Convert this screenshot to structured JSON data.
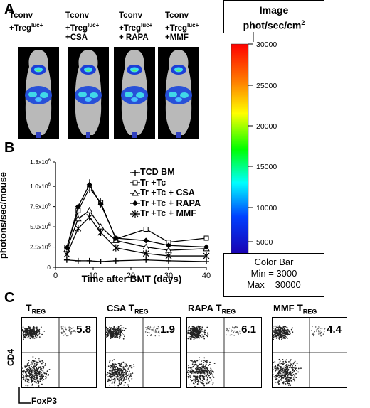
{
  "panel_a": {
    "letter": "A",
    "images": [
      {
        "line1": "Tconv",
        "line2": "+Treg",
        "sup": "luc+",
        "line3": ""
      },
      {
        "line1": "Tconv",
        "line2": "+Treg",
        "sup": "luc+",
        "line3": "+CSA"
      },
      {
        "line1": "Tconv",
        "line2": "+Treg",
        "sup": "luc+",
        "line3": "+ RAPA"
      },
      {
        "line1": "Tconv",
        "line2": "+Treg",
        "sup": "luc+",
        "line3": "+MMF"
      }
    ]
  },
  "color_scale": {
    "header": "Image\nphot/sec/cm",
    "header_sup": "2",
    "ticks": [
      "30000",
      "25000",
      "20000",
      "15000",
      "10000",
      "5000"
    ],
    "footer_title": "Color Bar",
    "footer_min": "Min = 3000",
    "footer_max": "Max = 30000"
  },
  "panel_b": {
    "letter": "B",
    "ylabel": "photons/sec/mouse",
    "xlabel": "Time after BMT (days)",
    "ytick_labels": [
      "0",
      "2.5x10",
      "5.0x10",
      "7.5x10",
      "1.0x10",
      "1.3x10"
    ],
    "ytick_exp": "6",
    "xtick_labels": [
      "0",
      "10",
      "20",
      "30",
      "40"
    ]
  },
  "chart_data": {
    "type": "line",
    "xlabel": "Time after BMT (days)",
    "ylabel": "photons/sec/mouse",
    "xlim": [
      0,
      40
    ],
    "ylim": [
      0,
      1300000
    ],
    "series": [
      {
        "name": "TCD BM",
        "marker": "cross",
        "x": [
          3,
          6,
          9,
          12,
          16,
          24,
          30,
          40
        ],
        "y": [
          90000,
          80000,
          80000,
          70000,
          80000,
          90000,
          80000,
          70000
        ]
      },
      {
        "name": "Tr +Tc",
        "marker": "square",
        "x": [
          3,
          6,
          9,
          12,
          16,
          24,
          30,
          40
        ],
        "y": [
          250000,
          700000,
          980000,
          800000,
          350000,
          470000,
          310000,
          360000
        ]
      },
      {
        "name": "Tr +Tc + CSA",
        "marker": "triangle",
        "x": [
          3,
          6,
          9,
          12,
          16,
          24,
          30,
          40
        ],
        "y": [
          220000,
          600000,
          700000,
          500000,
          330000,
          250000,
          210000,
          230000
        ]
      },
      {
        "name": "Tr +Tc + RAPA",
        "marker": "diamond",
        "x": [
          3,
          6,
          9,
          12,
          16,
          24,
          30,
          40
        ],
        "y": [
          240000,
          750000,
          1020000,
          780000,
          360000,
          330000,
          270000,
          250000
        ]
      },
      {
        "name": "Tr +Tc + MMF",
        "marker": "star",
        "x": [
          3,
          6,
          9,
          12,
          16,
          24,
          30,
          40
        ],
        "y": [
          160000,
          480000,
          620000,
          430000,
          240000,
          170000,
          140000,
          140000
        ]
      }
    ]
  },
  "panel_c": {
    "letter": "C",
    "ylabel": "CD4",
    "xlabel": "FoxP3",
    "plots": [
      {
        "prefix": "",
        "title": "T",
        "sub": "REG",
        "value": "5.8"
      },
      {
        "prefix": "CSA ",
        "title": "T",
        "sub": "REG",
        "value": "1.9"
      },
      {
        "prefix": "RAPA ",
        "title": "T",
        "sub": "REG",
        "value": "6.1"
      },
      {
        "prefix": "MMF ",
        "title": "T",
        "sub": "REG",
        "value": "4.4"
      }
    ]
  }
}
